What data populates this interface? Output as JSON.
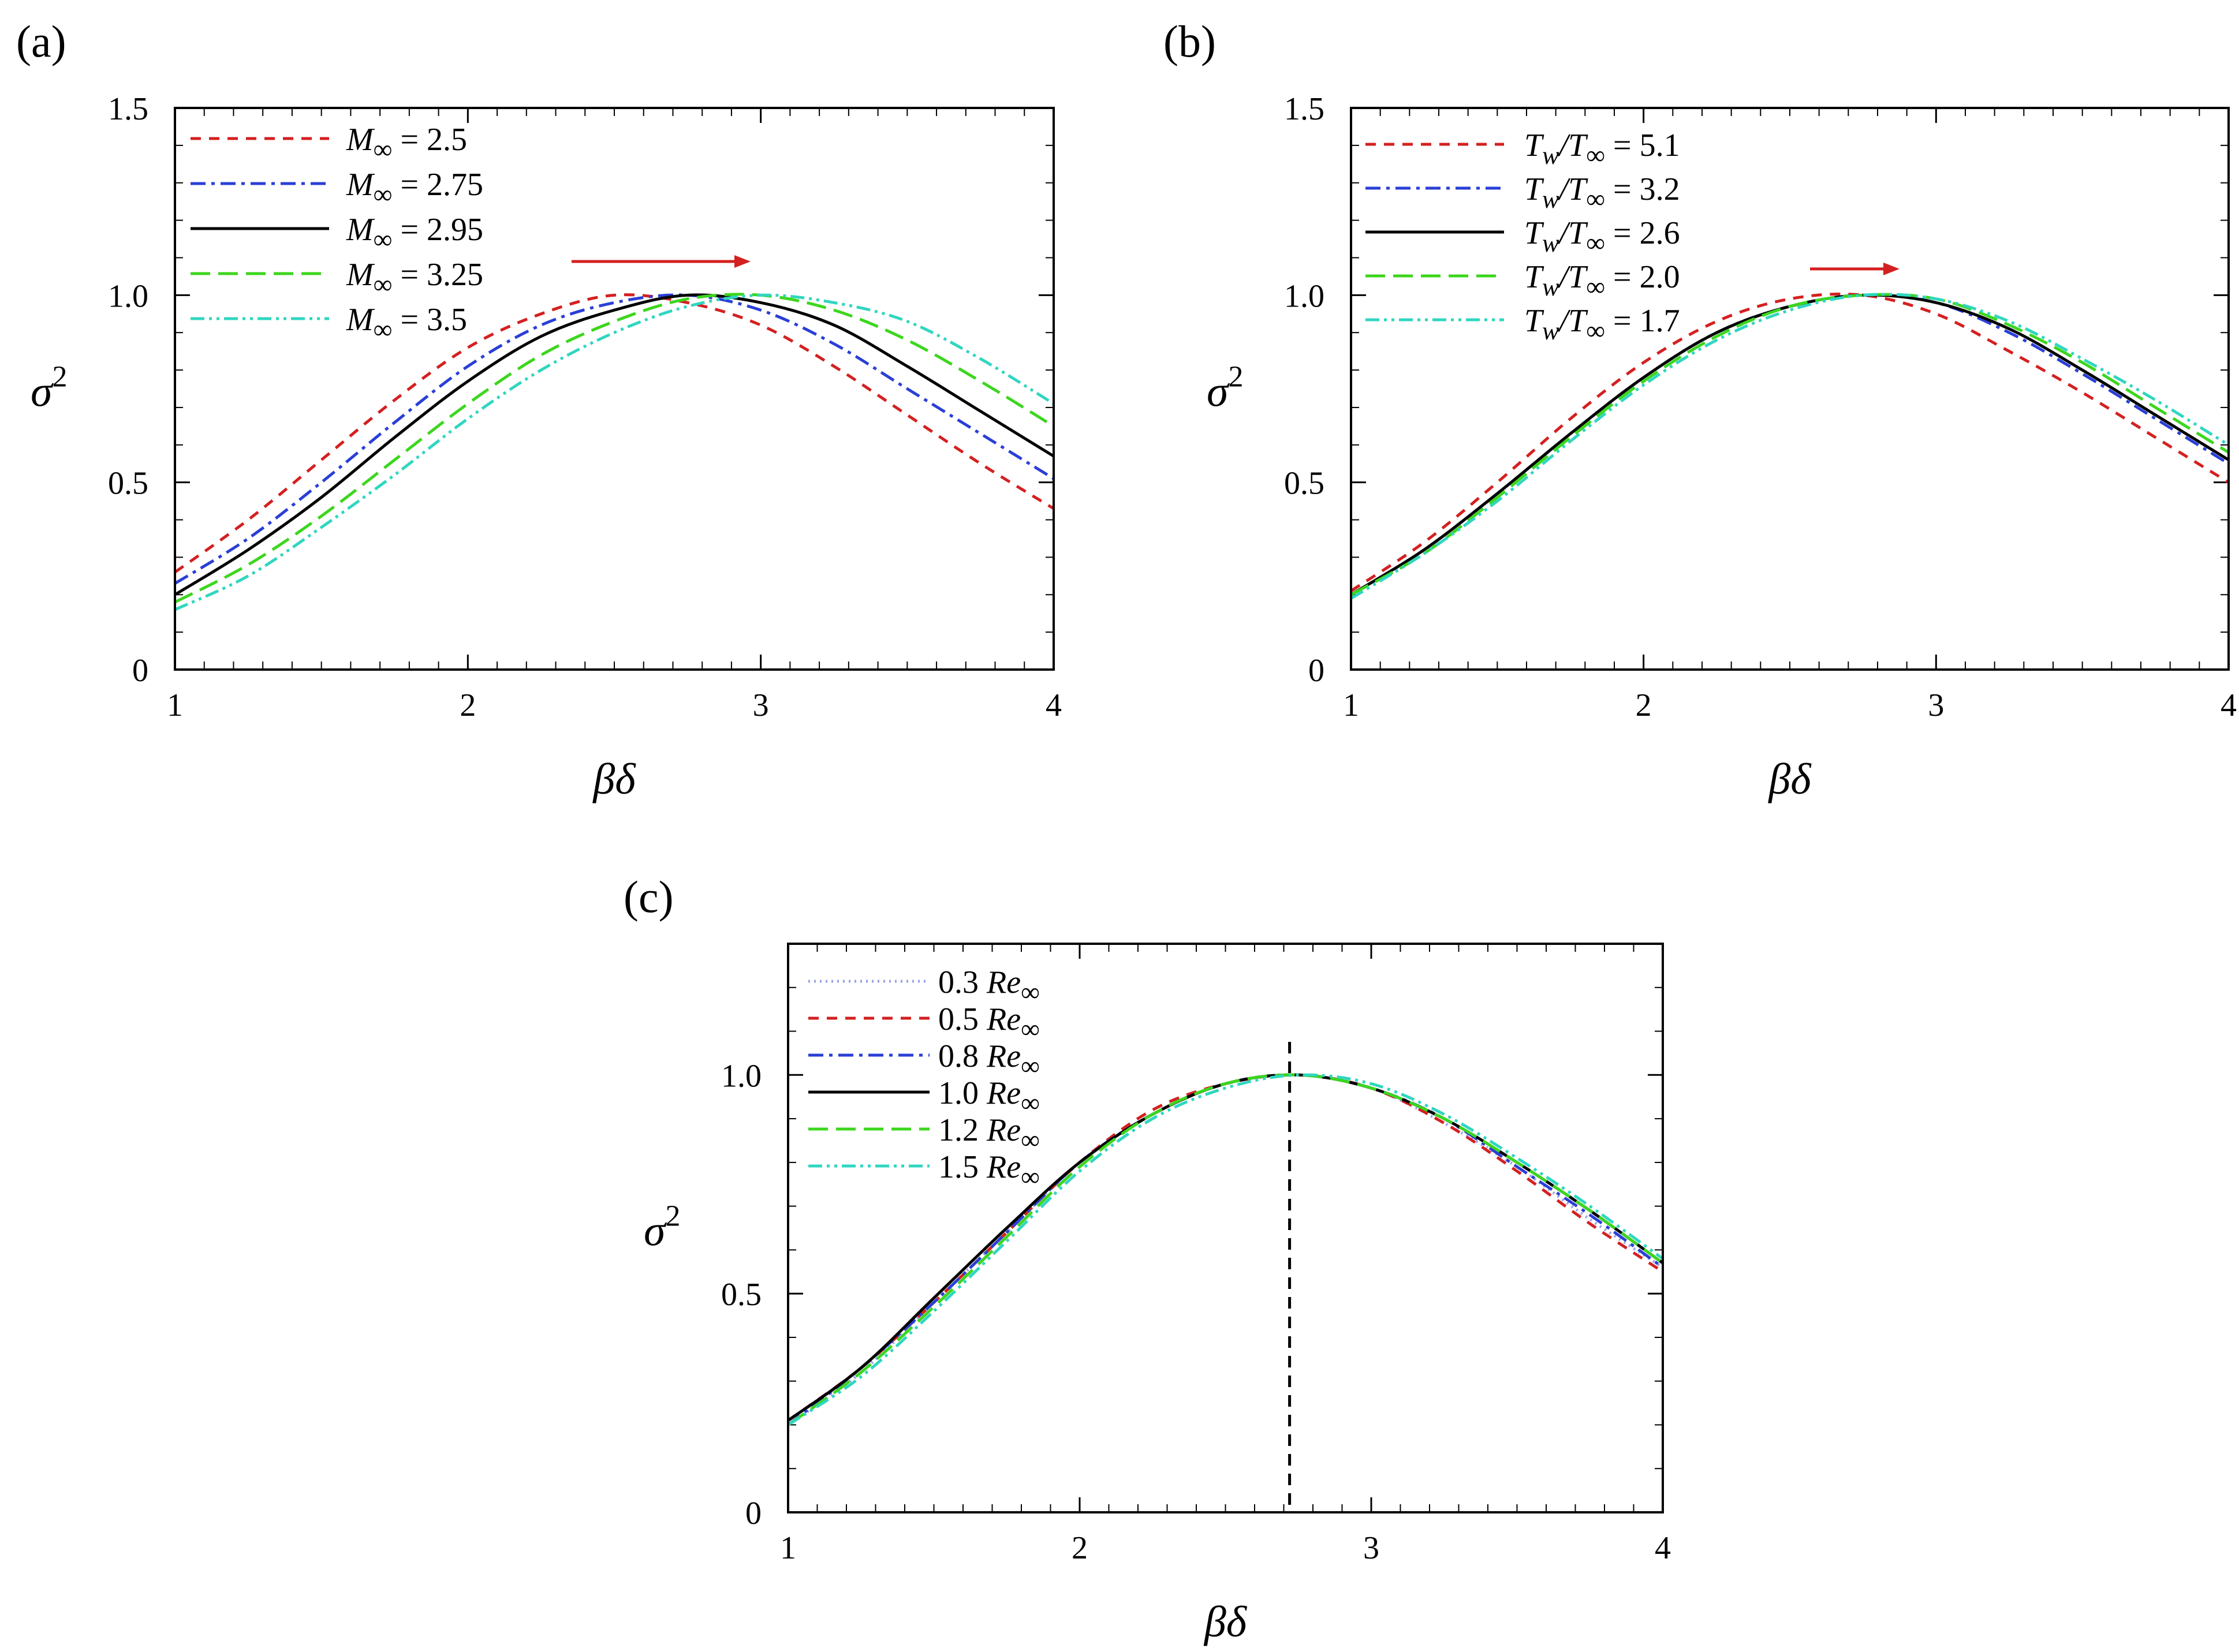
{
  "chart_data": [
    {
      "type": "line",
      "panel_label": "(a)",
      "xlabel": "βδ",
      "ylabel": "σ²",
      "xlim": [
        1,
        4
      ],
      "ylim": [
        0,
        1.5
      ],
      "xticks": [
        1,
        2,
        3,
        4
      ],
      "yticks": [
        0,
        0.5,
        1.0,
        1.5
      ],
      "ytick_labels": [
        "0",
        "0.5",
        "1.0",
        "1.5"
      ],
      "grid": false,
      "legend_position": "top-left",
      "annotation": "red arrow pointing right near the peaks",
      "series": [
        {
          "name": "M∞ = 2.5",
          "legend_var": "M",
          "legend_sub": "∞",
          "legend_val": " = 2.5",
          "color": "#d42020",
          "dash": "18,14",
          "x": [
            1,
            1.25,
            1.5,
            1.75,
            2,
            2.25,
            2.5,
            2.75,
            3,
            3.25,
            3.5,
            3.75,
            4
          ],
          "y": [
            0.26,
            0.4,
            0.56,
            0.72,
            0.86,
            0.95,
            1.0,
            0.98,
            0.92,
            0.81,
            0.68,
            0.55,
            0.43
          ]
        },
        {
          "name": "M∞ = 2.75",
          "legend_var": "M",
          "legend_sub": "∞",
          "legend_val": " = 2.75",
          "color": "#2a3fd6",
          "dash": "26,10,6,10",
          "x": [
            1,
            1.25,
            1.5,
            1.75,
            2,
            2.25,
            2.5,
            2.75,
            3,
            3.25,
            3.5,
            3.75,
            4
          ],
          "y": [
            0.23,
            0.35,
            0.5,
            0.66,
            0.81,
            0.92,
            0.98,
            1.0,
            0.96,
            0.87,
            0.75,
            0.63,
            0.51
          ]
        },
        {
          "name": "M∞ = 2.95",
          "legend_var": "M",
          "legend_sub": "∞",
          "legend_val": " = 2.95",
          "color": "#000000",
          "dash": "",
          "x": [
            1,
            1.25,
            1.5,
            1.75,
            2,
            2.25,
            2.5,
            2.75,
            3,
            3.25,
            3.5,
            3.75,
            4
          ],
          "y": [
            0.2,
            0.32,
            0.46,
            0.62,
            0.77,
            0.89,
            0.96,
            1.0,
            0.98,
            0.92,
            0.81,
            0.69,
            0.57
          ]
        },
        {
          "name": "M∞ = 3.25",
          "legend_var": "M",
          "legend_sub": "∞",
          "legend_val": " = 3.25",
          "color": "#3cd61e",
          "dash": "34,14",
          "x": [
            1,
            1.25,
            1.5,
            1.75,
            2,
            2.25,
            2.5,
            2.75,
            3,
            3.25,
            3.5,
            3.75,
            4
          ],
          "y": [
            0.18,
            0.28,
            0.41,
            0.56,
            0.71,
            0.84,
            0.93,
            0.99,
            1.0,
            0.96,
            0.88,
            0.77,
            0.65
          ]
        },
        {
          "name": "M∞ = 3.5",
          "legend_var": "M",
          "legend_sub": "∞",
          "legend_val": " = 3.5",
          "color": "#30d6c0",
          "dash": "24,8,5,8,5,8",
          "x": [
            1,
            1.25,
            1.5,
            1.75,
            2,
            2.25,
            2.5,
            2.75,
            3,
            3.25,
            3.5,
            3.75,
            4
          ],
          "y": [
            0.16,
            0.25,
            0.38,
            0.52,
            0.67,
            0.8,
            0.9,
            0.97,
            1.0,
            0.98,
            0.93,
            0.83,
            0.71
          ]
        }
      ]
    },
    {
      "type": "line",
      "panel_label": "(b)",
      "xlabel": "βδ",
      "ylabel": "σ²",
      "xlim": [
        1,
        4
      ],
      "ylim": [
        0,
        1.5
      ],
      "xticks": [
        1,
        2,
        3,
        4
      ],
      "yticks": [
        0,
        0.5,
        1.0,
        1.5
      ],
      "ytick_labels": [
        "0",
        "0.5",
        "1.0",
        "1.5"
      ],
      "grid": false,
      "legend_position": "top-left",
      "annotation": "red arrow pointing right near the peaks",
      "series": [
        {
          "name": "Tw/T∞ = 5.1",
          "legend_var": "T",
          "legend_sub": "w",
          "legend_var2": "T",
          "legend_sub2": "∞",
          "legend_val": " = 5.1",
          "color": "#d42020",
          "dash": "18,14",
          "x": [
            1,
            1.25,
            1.5,
            1.75,
            2,
            2.25,
            2.5,
            2.75,
            3,
            3.25,
            3.5,
            3.75,
            4
          ],
          "y": [
            0.21,
            0.34,
            0.5,
            0.67,
            0.82,
            0.93,
            0.99,
            1.0,
            0.95,
            0.85,
            0.74,
            0.62,
            0.5
          ]
        },
        {
          "name": "Tw/T∞ = 3.2",
          "legend_var": "T",
          "legend_sub": "w",
          "legend_var2": "T",
          "legend_sub2": "∞",
          "legend_val": " = 3.2",
          "color": "#2a3fd6",
          "dash": "26,10,6,10",
          "x": [
            1,
            1.25,
            1.5,
            1.75,
            2,
            2.25,
            2.5,
            2.75,
            3,
            3.25,
            3.5,
            3.75,
            4
          ],
          "y": [
            0.2,
            0.32,
            0.47,
            0.63,
            0.78,
            0.9,
            0.97,
            1.0,
            0.98,
            0.9,
            0.79,
            0.67,
            0.55
          ]
        },
        {
          "name": "Tw/T∞ = 2.6",
          "legend_var": "T",
          "legend_sub": "w",
          "legend_var2": "T",
          "legend_sub2": "∞",
          "legend_val": " = 2.6",
          "color": "#000000",
          "dash": "",
          "x": [
            1,
            1.25,
            1.5,
            1.75,
            2,
            2.25,
            2.5,
            2.75,
            3,
            3.25,
            3.5,
            3.75,
            4
          ],
          "y": [
            0.2,
            0.32,
            0.47,
            0.63,
            0.78,
            0.9,
            0.97,
            1.0,
            0.98,
            0.91,
            0.8,
            0.68,
            0.56
          ]
        },
        {
          "name": "Tw/T∞ = 2.0",
          "legend_var": "T",
          "legend_sub": "w",
          "legend_var2": "T",
          "legend_sub2": "∞",
          "legend_val": " = 2.0",
          "color": "#3cd61e",
          "dash": "34,14",
          "x": [
            1,
            1.25,
            1.5,
            1.75,
            2,
            2.25,
            2.5,
            2.75,
            3,
            3.25,
            3.5,
            3.75,
            4
          ],
          "y": [
            0.2,
            0.31,
            0.46,
            0.62,
            0.77,
            0.89,
            0.97,
            1.0,
            0.99,
            0.92,
            0.82,
            0.7,
            0.58
          ]
        },
        {
          "name": "Tw/T∞ = 1.7",
          "legend_var": "T",
          "legend_sub": "w",
          "legend_var2": "T",
          "legend_sub2": "∞",
          "legend_val": " = 1.7",
          "color": "#30d6c0",
          "dash": "24,8,5,8,5,8",
          "x": [
            1,
            1.25,
            1.5,
            1.75,
            2,
            2.25,
            2.5,
            2.75,
            3,
            3.25,
            3.5,
            3.75,
            4
          ],
          "y": [
            0.19,
            0.31,
            0.45,
            0.61,
            0.76,
            0.88,
            0.96,
            1.0,
            0.99,
            0.93,
            0.83,
            0.72,
            0.6
          ]
        }
      ]
    },
    {
      "type": "line",
      "panel_label": "(c)",
      "xlabel": "βδ",
      "ylabel": "σ²",
      "xlim": [
        1,
        4
      ],
      "ylim": [
        0,
        1.3
      ],
      "xticks": [
        1,
        2,
        3,
        4
      ],
      "yticks": [
        0,
        0.5,
        1.0
      ],
      "ytick_labels": [
        "0",
        "0.5",
        "1.0"
      ],
      "grid": false,
      "legend_position": "top-left",
      "vertical_reference_line_x": 2.72,
      "series": [
        {
          "name": "0.3 Re∞",
          "legend_val": "0.3 ",
          "legend_var": "Re",
          "legend_sub": "∞",
          "color": "#9aa4e6",
          "dash": "3,7",
          "x": [
            1,
            1.25,
            1.5,
            1.75,
            2,
            2.25,
            2.5,
            2.75,
            3,
            3.25,
            3.5,
            3.75,
            4
          ],
          "y": [
            0.2,
            0.32,
            0.48,
            0.64,
            0.8,
            0.91,
            0.98,
            1.0,
            0.97,
            0.89,
            0.79,
            0.67,
            0.56
          ]
        },
        {
          "name": "0.5 Re∞",
          "legend_val": "0.5 ",
          "legend_var": "Re",
          "legend_sub": "∞",
          "color": "#d42020",
          "dash": "18,14",
          "x": [
            1,
            1.25,
            1.5,
            1.75,
            2,
            2.25,
            2.5,
            2.75,
            3,
            3.25,
            3.5,
            3.75,
            4
          ],
          "y": [
            0.21,
            0.33,
            0.48,
            0.64,
            0.8,
            0.92,
            0.98,
            1.0,
            0.97,
            0.89,
            0.78,
            0.66,
            0.55
          ]
        },
        {
          "name": "0.8 Re∞",
          "legend_val": "0.8 ",
          "legend_var": "Re",
          "legend_sub": "∞",
          "color": "#2a3fd6",
          "dash": "26,10,6,10",
          "x": [
            1,
            1.25,
            1.5,
            1.75,
            2,
            2.25,
            2.5,
            2.75,
            3,
            3.25,
            3.5,
            3.75,
            4
          ],
          "y": [
            0.2,
            0.33,
            0.48,
            0.64,
            0.8,
            0.91,
            0.98,
            1.0,
            0.97,
            0.9,
            0.79,
            0.68,
            0.56
          ]
        },
        {
          "name": "1.0 Re∞",
          "legend_val": "1.0 ",
          "legend_var": "Re",
          "legend_sub": "∞",
          "color": "#000000",
          "dash": "",
          "x": [
            1,
            1.25,
            1.5,
            1.75,
            2,
            2.25,
            2.5,
            2.75,
            3,
            3.25,
            3.5,
            3.75,
            4
          ],
          "y": [
            0.21,
            0.33,
            0.49,
            0.65,
            0.8,
            0.91,
            0.98,
            1.0,
            0.97,
            0.9,
            0.8,
            0.69,
            0.57
          ]
        },
        {
          "name": "1.2 Re∞",
          "legend_val": "1.2 ",
          "legend_var": "Re",
          "legend_sub": "∞",
          "color": "#3cd61e",
          "dash": "34,14",
          "x": [
            1,
            1.25,
            1.5,
            1.75,
            2,
            2.25,
            2.5,
            2.75,
            3,
            3.25,
            3.5,
            3.75,
            4
          ],
          "y": [
            0.2,
            0.32,
            0.47,
            0.63,
            0.79,
            0.91,
            0.98,
            1.0,
            0.97,
            0.9,
            0.8,
            0.69,
            0.57
          ]
        },
        {
          "name": "1.5 Re∞",
          "legend_val": "1.5 ",
          "legend_var": "Re",
          "legend_sub": "∞",
          "color": "#30d6c0",
          "dash": "24,8,5,8,5,8",
          "x": [
            1,
            1.25,
            1.5,
            1.75,
            2,
            2.25,
            2.5,
            2.75,
            3,
            3.25,
            3.5,
            3.75,
            4
          ],
          "y": [
            0.2,
            0.31,
            0.46,
            0.62,
            0.78,
            0.9,
            0.97,
            1.0,
            0.98,
            0.91,
            0.81,
            0.7,
            0.58
          ]
        }
      ]
    }
  ]
}
